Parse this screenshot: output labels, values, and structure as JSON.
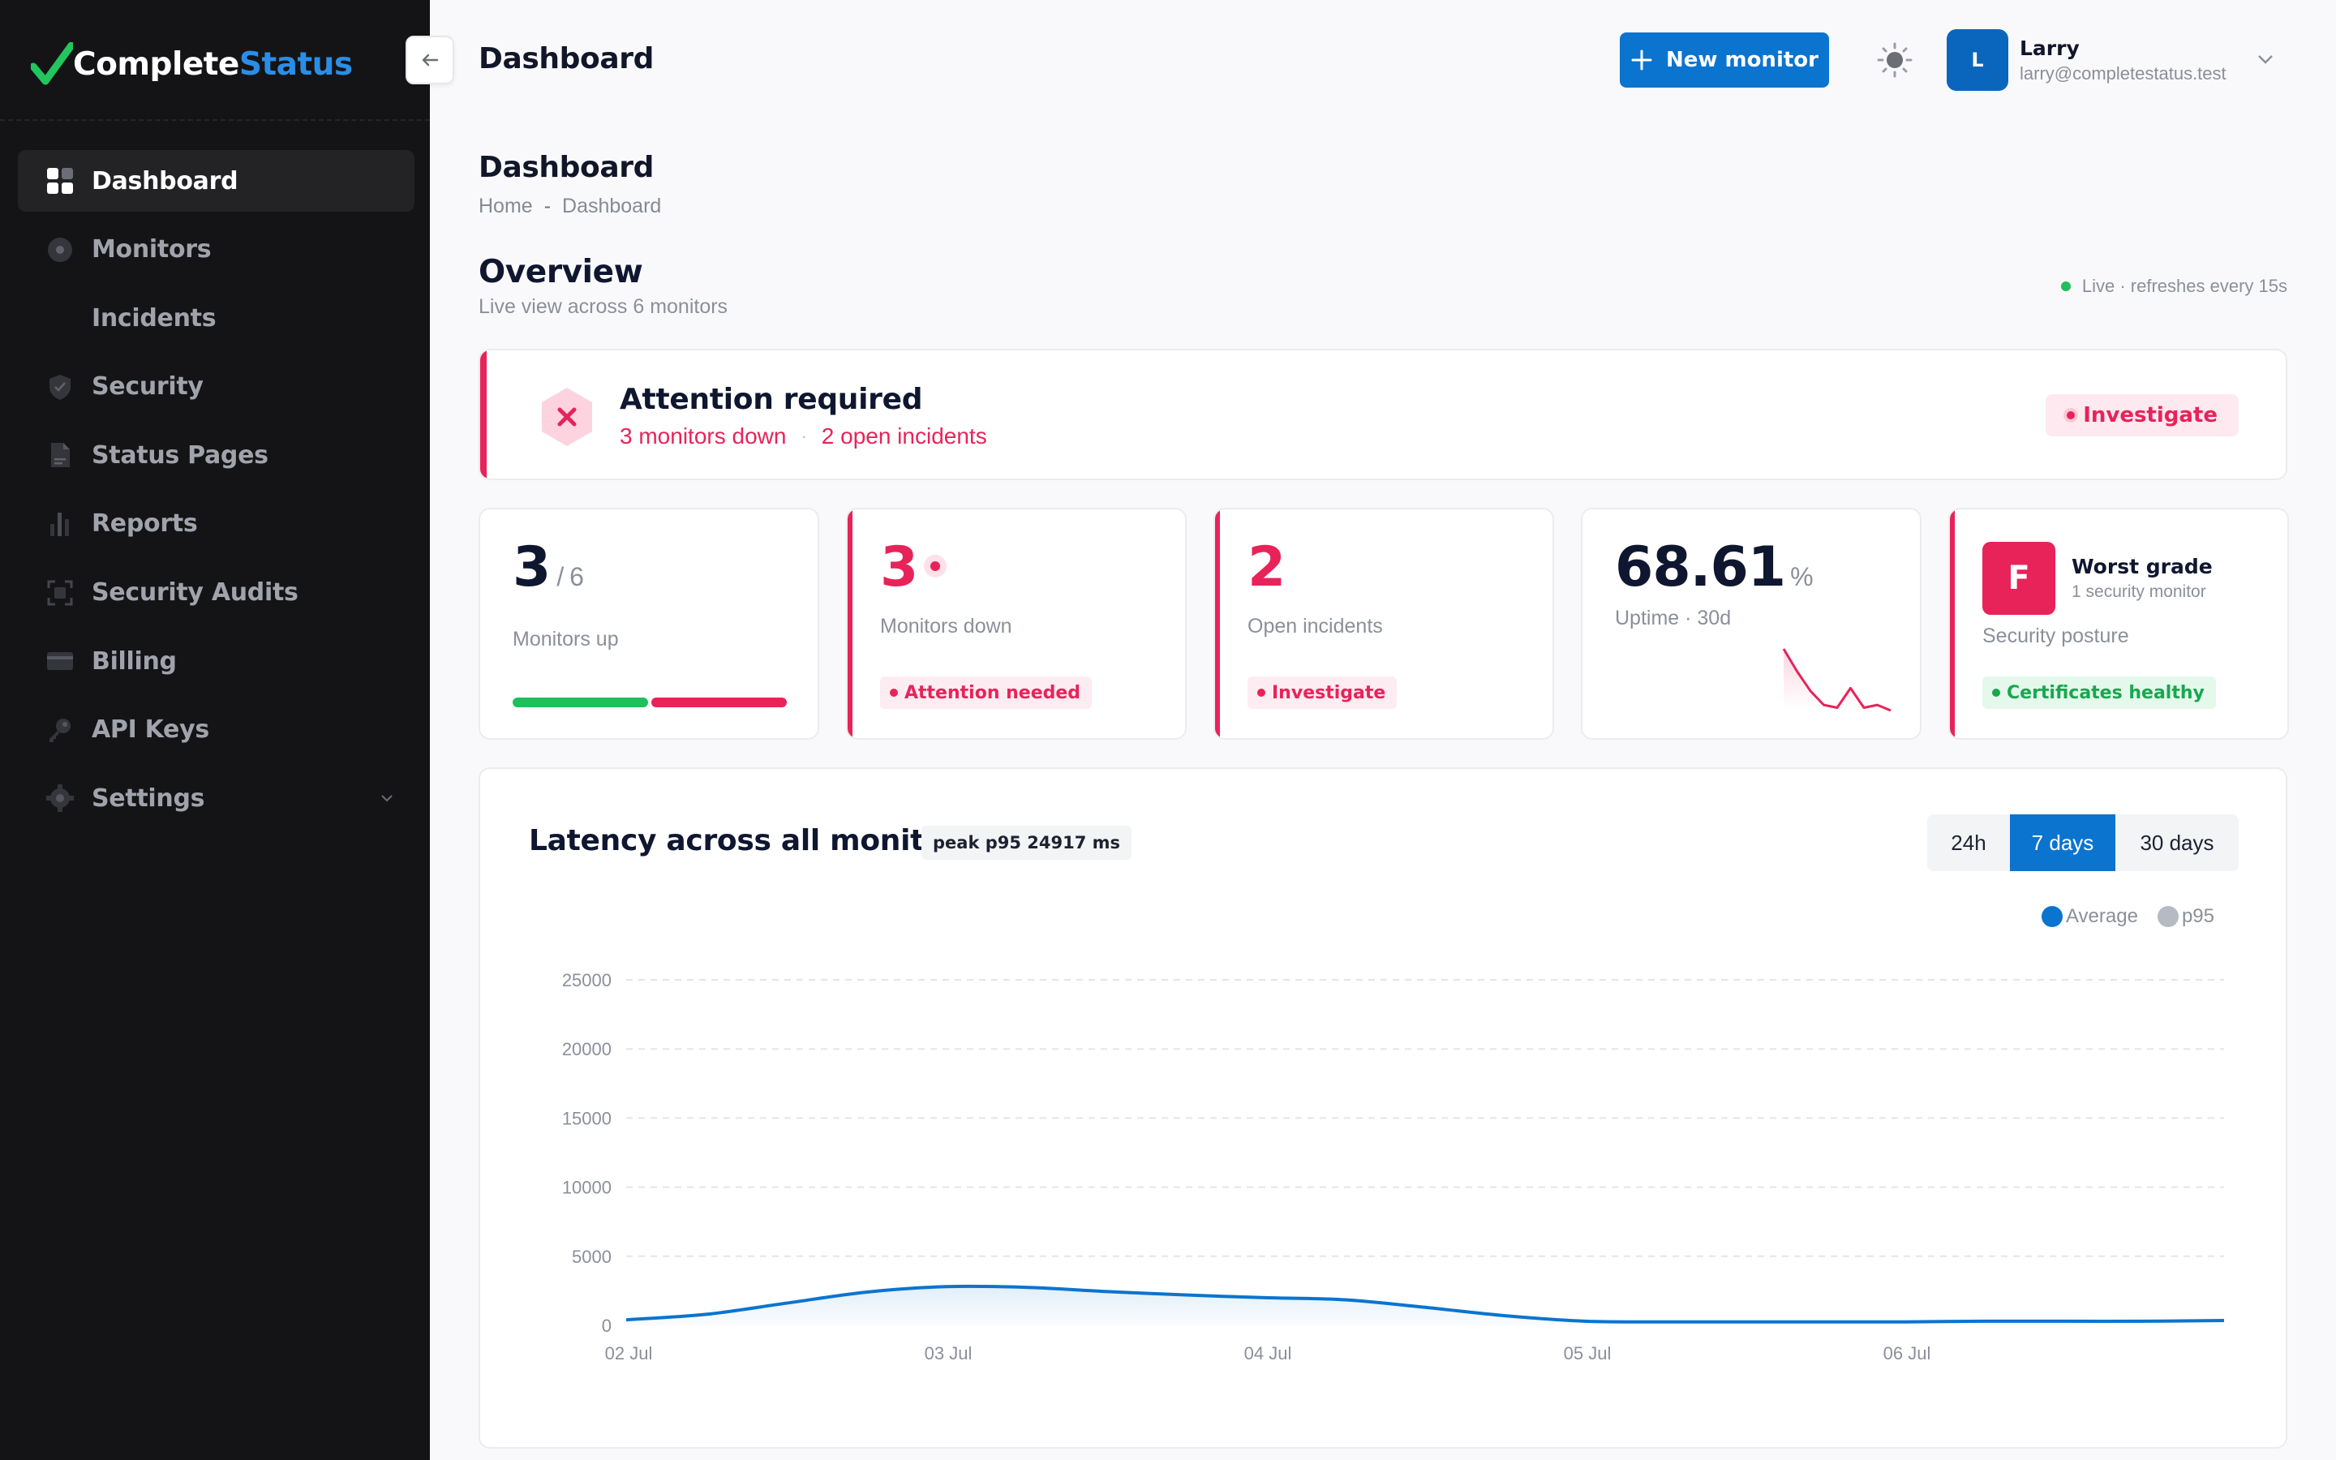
{
  "brand": {
    "name_part1": "Complete",
    "name_part2": "Status",
    "accent": "#2a8ee8"
  },
  "sidebar": {
    "items": [
      {
        "label": "Dashboard",
        "icon": "grid-icon",
        "active": true
      },
      {
        "label": "Monitors",
        "icon": "eye-icon"
      },
      {
        "label": "Incidents",
        "icon": "alert-icon"
      },
      {
        "label": "Security",
        "icon": "shield-check-icon"
      },
      {
        "label": "Status Pages",
        "icon": "document-icon"
      },
      {
        "label": "Reports",
        "icon": "bar-chart-icon"
      },
      {
        "label": "Security Audits",
        "icon": "scan-icon"
      },
      {
        "label": "Billing",
        "icon": "credit-card-icon"
      },
      {
        "label": "API Keys",
        "icon": "key-icon"
      },
      {
        "label": "Settings",
        "icon": "gear-icon",
        "expandable": true
      }
    ]
  },
  "header": {
    "title": "Dashboard",
    "new_monitor_label": "New monitor",
    "user": {
      "initial": "L",
      "name": "Larry",
      "email": "larry@completestatus.test"
    }
  },
  "page": {
    "title": "Dashboard",
    "breadcrumb": [
      "Home",
      "Dashboard"
    ],
    "overview_title": "Overview",
    "overview_sub": "Live view across 6 monitors",
    "live_text": "Live · refreshes every 15s"
  },
  "attention": {
    "title": "Attention required",
    "monitors_down": "3 monitors down",
    "open_incidents": "2 open incidents",
    "button": "Investigate"
  },
  "stats": {
    "up": {
      "value": "3",
      "total": "/ 6",
      "label": "Monitors up",
      "up_count": 3,
      "down_count": 3
    },
    "down": {
      "value": "3",
      "label": "Monitors down",
      "pill": "Attention needed"
    },
    "incidents": {
      "value": "2",
      "label": "Open incidents",
      "pill": "Investigate"
    },
    "uptime": {
      "value": "68.61",
      "unit": "%",
      "label": "Uptime · 30d",
      "sparkline": [
        100,
        84,
        70,
        60,
        58,
        72,
        58,
        60,
        56
      ]
    },
    "security": {
      "grade": "F",
      "title": "Worst grade",
      "sub": "1 security monitor",
      "label": "Security posture",
      "pill": "Certificates healthy"
    }
  },
  "latency": {
    "title": "Latency across all monitors",
    "peak": "peak p95 24917 ms",
    "ranges": [
      "24h",
      "7 days",
      "30 days"
    ],
    "active_range": "7 days",
    "legend": [
      "Average",
      "p95"
    ]
  },
  "chart_data": {
    "type": "area",
    "title": "Latency across all monitors",
    "x_ticks": [
      "02 Jul",
      "03 Jul",
      "04 Jul",
      "05 Jul",
      "06 Jul"
    ],
    "x_range": [
      0,
      5
    ],
    "y_ticks": [
      0,
      5000,
      10000,
      15000,
      20000,
      25000
    ],
    "ylim": [
      0,
      25000
    ],
    "grid": true,
    "legend_position": "top-right",
    "series": [
      {
        "name": "Average",
        "color": "#0b74cf",
        "x": [
          0,
          0.25,
          0.5,
          0.75,
          1,
          1.25,
          1.5,
          1.75,
          2,
          2.25,
          2.5,
          2.75,
          3,
          3.25,
          3.5,
          3.75,
          4,
          4.25,
          4.5,
          4.75,
          5
        ],
        "y": [
          400,
          800,
          1600,
          2400,
          2800,
          2750,
          2450,
          2200,
          2000,
          1850,
          1300,
          700,
          300,
          250,
          250,
          250,
          250,
          300,
          300,
          300,
          350
        ]
      },
      {
        "name": "p95",
        "color": "#b6bac3",
        "x": [],
        "y": []
      }
    ]
  }
}
